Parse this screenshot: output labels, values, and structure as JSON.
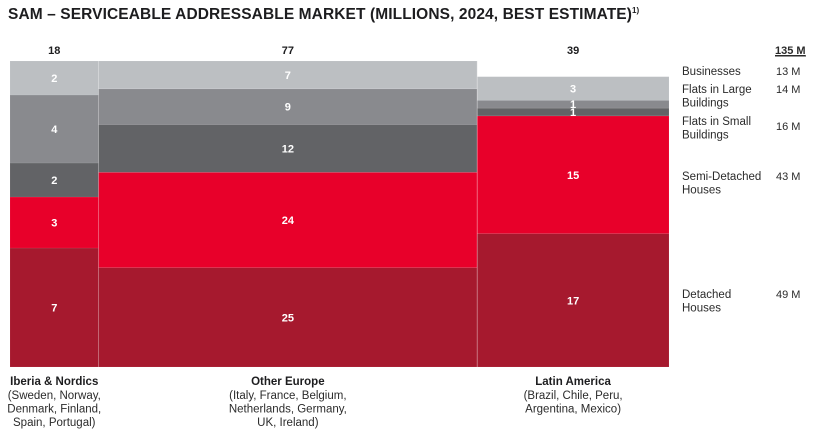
{
  "chart_data": {
    "type": "bar",
    "subtype": "marimekko",
    "title": "SAM – SERVICEABLE ADDRESSABLE MARKET (MILLIONS, 2024, BEST ESTIMATE)",
    "title_footnote": "1)",
    "unit": "millions",
    "categories": [
      {
        "name": "Iberia & Nordics",
        "countries": [
          "(Sweden, Norway,",
          "Denmark, Finland,",
          "Spain, Portugal)"
        ],
        "total": 18
      },
      {
        "name": "Other Europe",
        "countries": [
          "(Italy, France, Belgium,",
          "Netherlands, Germany,",
          "UK, Ireland)"
        ],
        "total": 77
      },
      {
        "name": "Latin America",
        "countries": [
          "(Brazil, Chile, Peru,",
          "Argentina, Mexico)"
        ],
        "total": 39
      }
    ],
    "series": [
      {
        "name": "Businesses",
        "legend_lines": [
          "Businesses"
        ],
        "total_label": "13 M",
        "color": "#bcbfc2",
        "values": [
          2,
          7,
          3
        ]
      },
      {
        "name": "Flats in Large Buildings",
        "legend_lines": [
          "Flats in Large",
          "Buildings"
        ],
        "total_label": "14 M",
        "color": "#898a8e",
        "values": [
          4,
          9,
          1
        ]
      },
      {
        "name": "Flats in Small Buildings",
        "legend_lines": [
          "Flats in Small",
          "Buildings"
        ],
        "total_label": "16 M",
        "color": "#626366",
        "values": [
          2,
          12,
          1
        ]
      },
      {
        "name": "Semi-Detached Houses",
        "legend_lines": [
          "Semi-Detached",
          "Houses"
        ],
        "total_label": "43 M",
        "color": "#e8002a",
        "values": [
          3,
          24,
          15
        ]
      },
      {
        "name": "Detached Houses",
        "legend_lines": [
          "Detached",
          "Houses"
        ],
        "total_label": "49 M",
        "color": "#a6192e",
        "values": [
          7,
          25,
          17
        ]
      }
    ],
    "grand_total_label": "135 M",
    "legend_position": "right",
    "grid": false
  }
}
